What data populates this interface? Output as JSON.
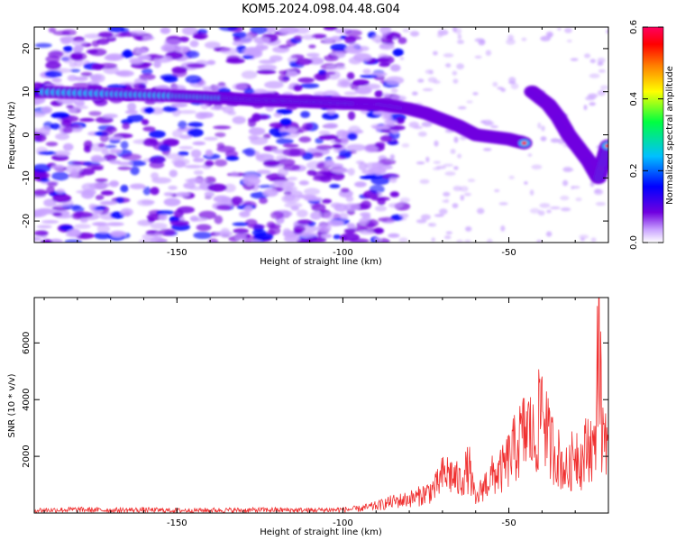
{
  "title": "KOM5.2024.098.04.48.G04",
  "chart_data": [
    {
      "type": "heatmap",
      "name": "spectrogram",
      "xlabel": "Height of straight line (km)",
      "ylabel": "Frequency (Hz)",
      "xlim": [
        -193,
        -20
      ],
      "ylim": [
        -25,
        25
      ],
      "xticks": [
        -150,
        -100,
        -50
      ],
      "yticks": [
        -20,
        -10,
        0,
        10,
        20
      ],
      "colorbar": {
        "label": "Normalized spectral amplitude",
        "range": [
          0,
          0.6
        ],
        "ticks": [
          0.0,
          0.2,
          0.4,
          0.6
        ],
        "colormap": [
          "#ffffff",
          "#c9a3ff",
          "#7000e0",
          "#0000ff",
          "#00c0ff",
          "#00ff40",
          "#ffff00",
          "#ff8000",
          "#ff0000",
          "#ff0060"
        ]
      },
      "trace": {
        "x": [
          -193,
          -170,
          -150,
          -135,
          -125,
          -115,
          -105,
          -95,
          -88,
          -80,
          -75,
          -70,
          -65,
          -60,
          -55,
          -50,
          -45
        ],
        "y": [
          10,
          9.5,
          9,
          8.5,
          8,
          7.8,
          7.5,
          7.2,
          7,
          6,
          5,
          3.5,
          2,
          0,
          -0.5,
          -1,
          -2
        ]
      },
      "trace2": {
        "x": [
          -43,
          -38,
          -35,
          -32,
          -29,
          -26,
          -23,
          -20
        ],
        "y": [
          10,
          7,
          4,
          0,
          -3,
          -6,
          -10,
          -2
        ]
      },
      "noise_region_xlim": [
        -193,
        -90
      ]
    },
    {
      "type": "line",
      "name": "snr",
      "xlabel": "Height of straight line (km)",
      "ylabel": "SNR (10 * v/v)",
      "xlim": [
        -193,
        -20
      ],
      "ylim": [
        0,
        7600
      ],
      "xticks": [
        -150,
        -100,
        -50
      ],
      "yticks": [
        2000,
        4000,
        6000
      ],
      "color": "#f03030",
      "series": [
        {
          "x": [
            -193,
            -180,
            -170,
            -160,
            -150,
            -140,
            -130,
            -120,
            -110,
            -100,
            -95,
            -90,
            -85,
            -82,
            -78,
            -75,
            -72,
            -70,
            -68,
            -65,
            -62,
            -60,
            -58,
            -55,
            -52,
            -50,
            -48,
            -46,
            -44,
            -42,
            -40,
            -38,
            -36,
            -34,
            -32,
            -30,
            -28,
            -26,
            -24,
            -23,
            -22,
            -21,
            -20
          ],
          "y": [
            100,
            120,
            100,
            110,
            90,
            100,
            100,
            110,
            100,
            120,
            150,
            250,
            400,
            450,
            550,
            700,
            900,
            1300,
            1400,
            1100,
            1600,
            400,
            900,
            1300,
            1500,
            1900,
            2300,
            2700,
            3000,
            2400,
            4100,
            2500,
            2200,
            1700,
            1400,
            2300,
            1800,
            2500,
            2100,
            7600,
            2700,
            3100,
            2700
          ]
        }
      ]
    }
  ]
}
